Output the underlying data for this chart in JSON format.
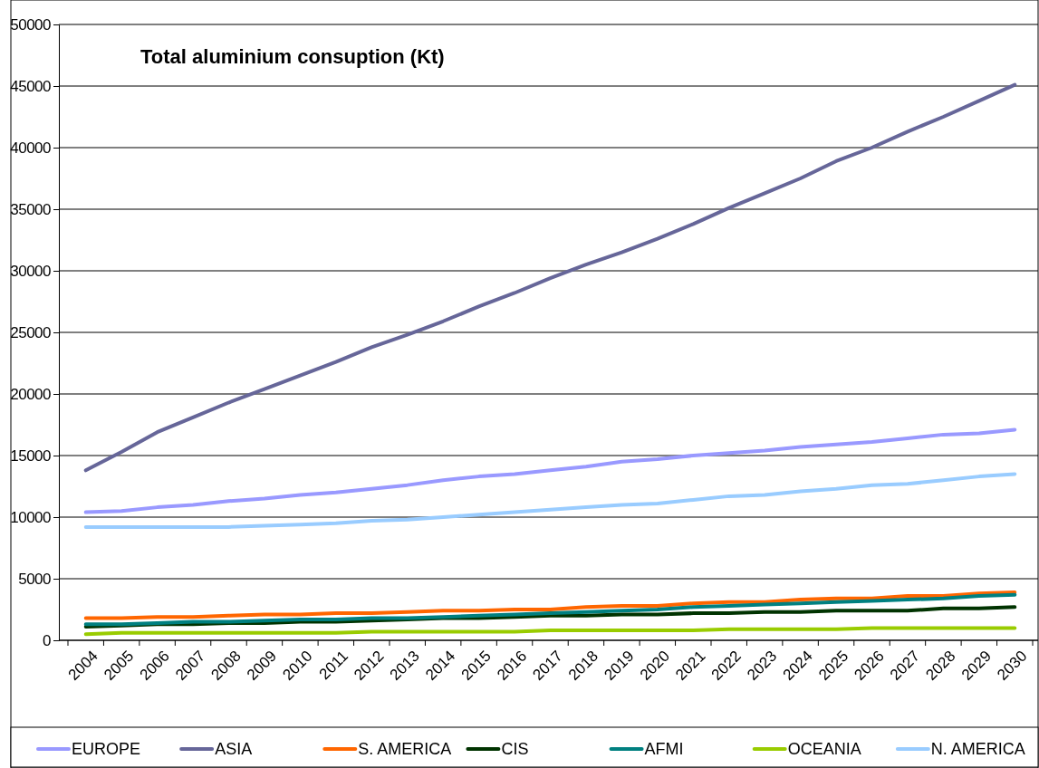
{
  "chart_data": {
    "type": "line",
    "title": "Total aluminium consuption (Kt)",
    "categories": [
      "2004",
      "2005",
      "2006",
      "2007",
      "2008",
      "2009",
      "2010",
      "2011",
      "2012",
      "2013",
      "2014",
      "2015",
      "2016",
      "2017",
      "2018",
      "2019",
      "2020",
      "2021",
      "2022",
      "2023",
      "2024",
      "2025",
      "2026",
      "2027",
      "2028",
      "2029",
      "2030"
    ],
    "ylim": [
      0,
      50000
    ],
    "yticks": [
      0,
      5000,
      10000,
      15000,
      20000,
      25000,
      30000,
      35000,
      40000,
      45000,
      50000
    ],
    "grid": "y",
    "legend": "bottom",
    "marker": "none",
    "line_style": "solid",
    "series": [
      {
        "name": "EUROPE",
        "color": "#9999ff",
        "values": [
          10400,
          10500,
          10800,
          11000,
          11300,
          11500,
          11800,
          12000,
          12300,
          12600,
          13000,
          13300,
          13500,
          13800,
          14100,
          14500,
          14700,
          15000,
          15200,
          15400,
          15700,
          15900,
          16100,
          16400,
          16700,
          16800,
          17100
        ]
      },
      {
        "name": "ASIA",
        "color": "#666699",
        "values": [
          13800,
          15300,
          16900,
          18100,
          19300,
          20400,
          21500,
          22600,
          23800,
          24800,
          25900,
          27100,
          28200,
          29400,
          30500,
          31500,
          32600,
          33800,
          35100,
          36300,
          37500,
          38900,
          40000,
          41300,
          42500,
          43800,
          45100
        ]
      },
      {
        "name": "S. AMERICA",
        "color": "#ff6600",
        "values": [
          1800,
          1800,
          1900,
          1900,
          2000,
          2100,
          2100,
          2200,
          2200,
          2300,
          2400,
          2400,
          2500,
          2500,
          2700,
          2800,
          2800,
          3000,
          3100,
          3100,
          3300,
          3400,
          3400,
          3600,
          3600,
          3800,
          3900
        ]
      },
      {
        "name": "CIS",
        "color": "#003300",
        "values": [
          1100,
          1200,
          1300,
          1300,
          1400,
          1400,
          1500,
          1500,
          1600,
          1700,
          1800,
          1800,
          1900,
          2000,
          2000,
          2100,
          2100,
          2200,
          2200,
          2300,
          2300,
          2400,
          2400,
          2400,
          2600,
          2600,
          2700
        ]
      },
      {
        "name": "AFMI",
        "color": "#008080",
        "values": [
          1300,
          1300,
          1400,
          1500,
          1500,
          1600,
          1700,
          1700,
          1800,
          1800,
          1900,
          2000,
          2100,
          2200,
          2300,
          2400,
          2500,
          2700,
          2800,
          2900,
          3000,
          3100,
          3200,
          3300,
          3400,
          3600,
          3700
        ]
      },
      {
        "name": "OCEANIA",
        "color": "#99cc00",
        "values": [
          500,
          600,
          600,
          600,
          600,
          600,
          600,
          600,
          700,
          700,
          700,
          700,
          700,
          800,
          800,
          800,
          800,
          800,
          900,
          900,
          900,
          900,
          1000,
          1000,
          1000,
          1000,
          1000
        ]
      },
      {
        "name": "N. AMERICA",
        "color": "#99ccff",
        "values": [
          9200,
          9200,
          9200,
          9200,
          9200,
          9300,
          9400,
          9500,
          9700,
          9800,
          10000,
          10200,
          10400,
          10600,
          10800,
          11000,
          11100,
          11400,
          11700,
          11800,
          12100,
          12300,
          12600,
          12700,
          13000,
          13300,
          13500
        ]
      }
    ]
  }
}
